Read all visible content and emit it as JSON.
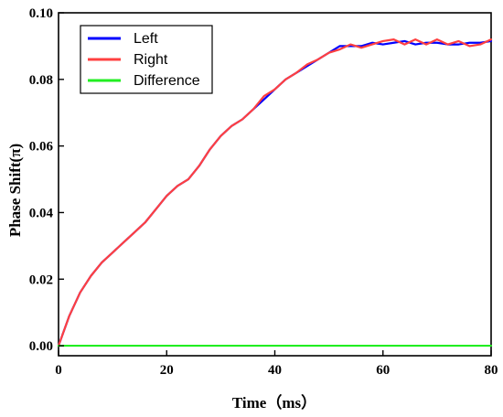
{
  "chart_data": {
    "type": "line",
    "xlabel": "Time（ms）",
    "ylabel": "Phase Shift(π)",
    "xlim": [
      0,
      80
    ],
    "ylim": [
      -0.003,
      0.1
    ],
    "x_ticks": [
      0,
      20,
      40,
      60,
      80
    ],
    "y_ticks": [
      0.0,
      0.02,
      0.04,
      0.06,
      0.08,
      0.1
    ],
    "x_tick_labels": [
      "0",
      "20",
      "40",
      "60",
      "80"
    ],
    "y_tick_labels": [
      "0.00",
      "0.02",
      "0.04",
      "0.06",
      "0.08",
      "0.10"
    ],
    "grid": false,
    "legend_position": "top-left",
    "series": [
      {
        "name": "Left",
        "color": "#0000ff",
        "points": [
          [
            0,
            0.0
          ],
          [
            2,
            0.009
          ],
          [
            4,
            0.016
          ],
          [
            6,
            0.021
          ],
          [
            8,
            0.025
          ],
          [
            10,
            0.028
          ],
          [
            12,
            0.031
          ],
          [
            14,
            0.034
          ],
          [
            16,
            0.037
          ],
          [
            18,
            0.041
          ],
          [
            20,
            0.045
          ],
          [
            22,
            0.048
          ],
          [
            24,
            0.05
          ],
          [
            26,
            0.054
          ],
          [
            28,
            0.059
          ],
          [
            30,
            0.063
          ],
          [
            32,
            0.066
          ],
          [
            34,
            0.068
          ],
          [
            36,
            0.071
          ],
          [
            38,
            0.074
          ],
          [
            40,
            0.077
          ],
          [
            42,
            0.08
          ],
          [
            44,
            0.082
          ],
          [
            46,
            0.084
          ],
          [
            48,
            0.086
          ],
          [
            50,
            0.088
          ],
          [
            52,
            0.09
          ],
          [
            54,
            0.09
          ],
          [
            56,
            0.09
          ],
          [
            58,
            0.091
          ],
          [
            60,
            0.0905
          ],
          [
            62,
            0.091
          ],
          [
            64,
            0.0915
          ],
          [
            66,
            0.0905
          ],
          [
            68,
            0.091
          ],
          [
            70,
            0.091
          ],
          [
            72,
            0.0905
          ],
          [
            74,
            0.0905
          ],
          [
            76,
            0.091
          ],
          [
            78,
            0.091
          ],
          [
            80,
            0.0915
          ]
        ]
      },
      {
        "name": "Right",
        "color": "#ff4040",
        "points": [
          [
            0,
            0.0
          ],
          [
            2,
            0.009
          ],
          [
            4,
            0.016
          ],
          [
            6,
            0.021
          ],
          [
            8,
            0.025
          ],
          [
            10,
            0.028
          ],
          [
            12,
            0.031
          ],
          [
            14,
            0.034
          ],
          [
            16,
            0.037
          ],
          [
            18,
            0.041
          ],
          [
            20,
            0.045
          ],
          [
            22,
            0.048
          ],
          [
            24,
            0.05
          ],
          [
            26,
            0.054
          ],
          [
            28,
            0.059
          ],
          [
            30,
            0.063
          ],
          [
            32,
            0.066
          ],
          [
            34,
            0.068
          ],
          [
            36,
            0.071
          ],
          [
            38,
            0.075
          ],
          [
            40,
            0.077
          ],
          [
            42,
            0.08
          ],
          [
            44,
            0.082
          ],
          [
            46,
            0.0845
          ],
          [
            48,
            0.086
          ],
          [
            50,
            0.088
          ],
          [
            52,
            0.089
          ],
          [
            54,
            0.0905
          ],
          [
            56,
            0.0895
          ],
          [
            58,
            0.0905
          ],
          [
            60,
            0.0915
          ],
          [
            62,
            0.092
          ],
          [
            64,
            0.0905
          ],
          [
            66,
            0.092
          ],
          [
            68,
            0.0905
          ],
          [
            70,
            0.092
          ],
          [
            72,
            0.0905
          ],
          [
            74,
            0.0915
          ],
          [
            76,
            0.09
          ],
          [
            78,
            0.0905
          ],
          [
            80,
            0.092
          ]
        ]
      },
      {
        "name": "Difference",
        "color": "#22ee22",
        "points": [
          [
            0,
            0.0
          ],
          [
            2,
            0.0
          ],
          [
            4,
            0.0
          ],
          [
            6,
            0.0
          ],
          [
            8,
            0.0
          ],
          [
            10,
            0.0
          ],
          [
            12,
            0.0
          ],
          [
            14,
            0.0
          ],
          [
            16,
            0.0
          ],
          [
            18,
            0.0
          ],
          [
            20,
            0.0
          ],
          [
            22,
            0.0
          ],
          [
            24,
            0.0
          ],
          [
            26,
            0.0
          ],
          [
            28,
            0.0
          ],
          [
            30,
            0.0
          ],
          [
            32,
            0.0
          ],
          [
            34,
            0.0
          ],
          [
            36,
            0.0
          ],
          [
            38,
            0.0
          ],
          [
            40,
            0.0
          ],
          [
            42,
            0.0
          ],
          [
            44,
            0.0
          ],
          [
            46,
            0.0
          ],
          [
            48,
            0.0
          ],
          [
            50,
            0.0
          ],
          [
            52,
            0.0
          ],
          [
            54,
            0.0
          ],
          [
            56,
            0.0
          ],
          [
            58,
            0.0
          ],
          [
            60,
            0.0
          ],
          [
            62,
            0.0
          ],
          [
            64,
            0.0
          ],
          [
            66,
            0.0
          ],
          [
            68,
            0.0
          ],
          [
            70,
            0.0
          ],
          [
            72,
            0.0
          ],
          [
            74,
            0.0
          ],
          [
            76,
            0.0
          ],
          [
            78,
            0.0
          ],
          [
            80,
            0.0
          ]
        ]
      }
    ]
  }
}
